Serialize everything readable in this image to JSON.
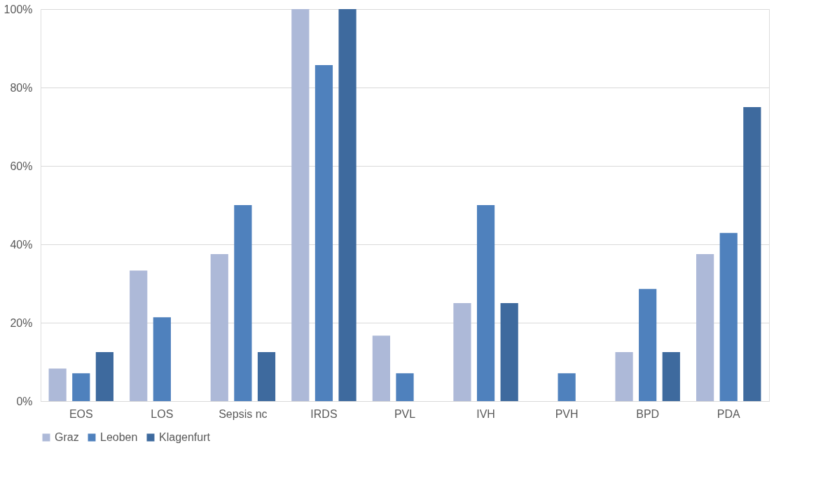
{
  "chart_data": {
    "type": "bar",
    "categories": [
      "EOS",
      "LOS",
      "Sepsis nc",
      "IRDS",
      "PVL",
      "IVH",
      "PVH",
      "BPD",
      "PDA"
    ],
    "series": [
      {
        "name": "Graz",
        "color": "#adb9d8",
        "values": [
          8.3,
          33.3,
          37.5,
          100,
          16.7,
          25,
          0,
          12.5,
          37.5
        ]
      },
      {
        "name": "Leoben",
        "color": "#4f81bd",
        "values": [
          7.1,
          21.4,
          50,
          85.7,
          7.1,
          50,
          7.1,
          28.6,
          42.9
        ]
      },
      {
        "name": "Klagenfurt",
        "color": "#3e6a9e",
        "values": [
          12.5,
          0,
          12.5,
          100,
          0,
          25,
          0,
          12.5,
          75
        ]
      }
    ],
    "ylim": [
      0,
      100
    ],
    "yticks": [
      {
        "value": 0,
        "label": "0%"
      },
      {
        "value": 20,
        "label": "20%"
      },
      {
        "value": 40,
        "label": "40%"
      },
      {
        "value": 60,
        "label": "60%"
      },
      {
        "value": 80,
        "label": "80%"
      },
      {
        "value": 100,
        "label": "100%"
      }
    ],
    "grid": "y",
    "legend": "bottom"
  }
}
